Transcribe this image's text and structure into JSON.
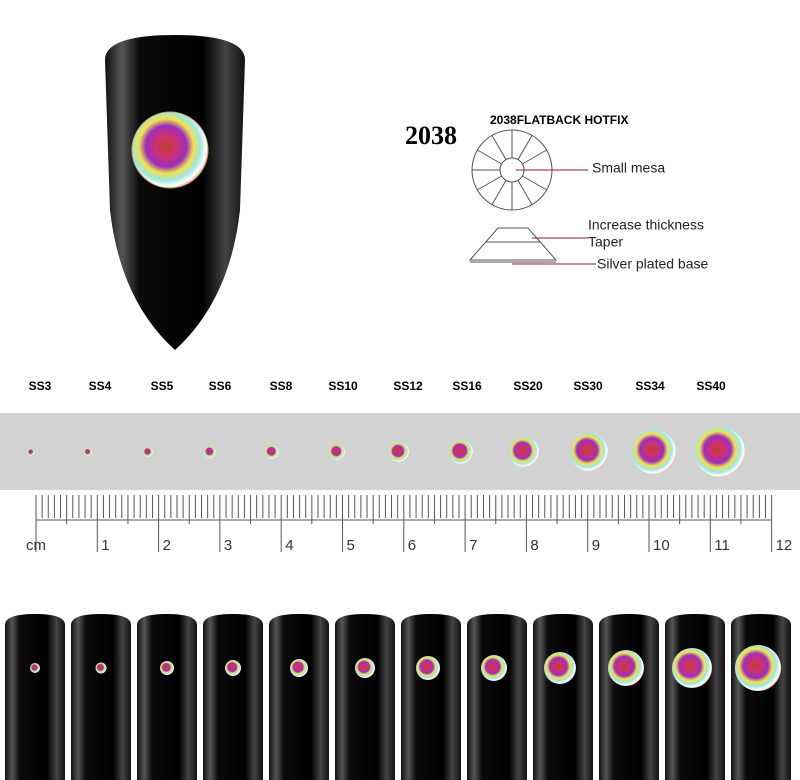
{
  "header": {
    "model": "2038",
    "title": "2038FLATBACK HOTFIX"
  },
  "callouts": {
    "mesa": "Small mesa",
    "thickness": "Increase thickness",
    "taper": "Taper",
    "base": "Silver plated base"
  },
  "sizes": [
    "SS3",
    "SS4",
    "SS5",
    "SS6",
    "SS8",
    "SS10",
    "SS12",
    "SS16",
    "SS20",
    "SS30",
    "SS34",
    "SS40"
  ],
  "ruler": {
    "unit": "cm",
    "numbers": [
      "1",
      "2",
      "3",
      "4",
      "5",
      "6",
      "7",
      "8",
      "9",
      "10",
      "11",
      "12"
    ]
  }
}
